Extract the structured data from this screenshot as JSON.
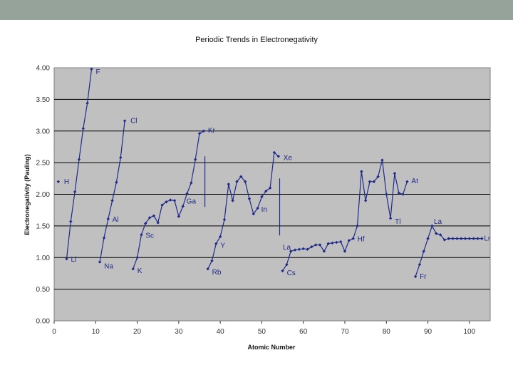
{
  "slide": {
    "header_color": "#95a39a"
  },
  "chart_data": {
    "type": "line",
    "title": "Periodic Trends in Electronegativity",
    "xlabel": "Atomic Number",
    "ylabel": "Electronegativity (Pauling)",
    "xlim": [
      0,
      105
    ],
    "ylim": [
      0,
      4
    ],
    "xticks": [
      "0",
      "10",
      "20",
      "30",
      "40",
      "50",
      "60",
      "70",
      "80",
      "90",
      "100"
    ],
    "yticks": [
      "0.00",
      "0.50",
      "1.00",
      "1.50",
      "2.00",
      "2.50",
      "3.00",
      "3.50",
      "4.00"
    ],
    "grid": "horizontal",
    "plot_background": "#c0c0c0",
    "line_color": "#1f2a8a",
    "series": [
      {
        "x": [
          1,
          3,
          4,
          5,
          6,
          7,
          8,
          9,
          11,
          12,
          13,
          14,
          15,
          16,
          17,
          19,
          20,
          21,
          22,
          23,
          24,
          25,
          26,
          27,
          28,
          29,
          30,
          31,
          32,
          33,
          34,
          35,
          36,
          37,
          38,
          39,
          40,
          41,
          42,
          43,
          44,
          45,
          46,
          47,
          48,
          49,
          50,
          51,
          52,
          53,
          54,
          55,
          56,
          57,
          58,
          59,
          60,
          61,
          62,
          63,
          64,
          65,
          66,
          67,
          68,
          69,
          70,
          71,
          72,
          73,
          74,
          75,
          76,
          77,
          78,
          79,
          80,
          81,
          82,
          83,
          84,
          85,
          87,
          88,
          89,
          90,
          91,
          92,
          93,
          94,
          95,
          96,
          97,
          98,
          99,
          100,
          101,
          102,
          103
        ],
        "y": [
          2.2,
          0.98,
          1.57,
          2.04,
          2.55,
          3.04,
          3.44,
          3.98,
          0.93,
          1.31,
          1.61,
          1.9,
          2.19,
          2.58,
          3.16,
          0.82,
          1.0,
          1.36,
          1.54,
          1.63,
          1.66,
          1.55,
          1.83,
          1.88,
          1.91,
          1.9,
          1.65,
          1.81,
          2.01,
          2.18,
          2.55,
          2.96,
          3.0,
          0.82,
          0.95,
          1.22,
          1.33,
          1.6,
          2.16,
          1.9,
          2.2,
          2.28,
          2.2,
          1.93,
          1.69,
          1.78,
          1.96,
          2.05,
          2.1,
          2.66,
          2.6,
          0.79,
          0.89,
          1.1,
          1.12,
          1.13,
          1.14,
          1.13,
          1.17,
          1.2,
          1.2,
          1.1,
          1.22,
          1.23,
          1.24,
          1.25,
          1.1,
          1.27,
          1.3,
          1.5,
          2.36,
          1.9,
          2.2,
          2.2,
          2.28,
          2.54,
          2.0,
          1.62,
          2.33,
          2.02,
          2.0,
          2.2,
          0.7,
          0.89,
          1.1,
          1.3,
          1.5,
          1.38,
          1.36,
          1.28,
          1.3,
          1.3,
          1.3,
          1.3,
          1.3,
          1.3,
          1.3,
          1.3,
          1.3
        ],
        "gaps_after_x": [
          1,
          9,
          17,
          36,
          54,
          85
        ]
      }
    ],
    "drop_lines": [
      {
        "x": 36.3,
        "from": 2.6,
        "to": 1.8
      },
      {
        "x": 54.3,
        "from": 2.25,
        "to": 1.35
      }
    ],
    "annotations": [
      {
        "text": "H",
        "x": 1
      },
      {
        "text": "Li",
        "x": 3
      },
      {
        "text": "F",
        "x": 9
      },
      {
        "text": "Na",
        "x": 11
      },
      {
        "text": "Al",
        "x": 13
      },
      {
        "text": "Cl",
        "x": 17
      },
      {
        "text": "K",
        "x": 19
      },
      {
        "text": "Sc",
        "x": 21
      },
      {
        "text": "Ga",
        "x": 31
      },
      {
        "text": "Kr",
        "x": 36
      },
      {
        "text": "Rb",
        "x": 37
      },
      {
        "text": "Y",
        "x": 39
      },
      {
        "text": "In",
        "x": 49
      },
      {
        "text": "Xe",
        "x": 54
      },
      {
        "text": "La",
        "x": 57
      },
      {
        "text": "Cs",
        "x": 55
      },
      {
        "text": "Hf",
        "x": 72
      },
      {
        "text": "Tl",
        "x": 81
      },
      {
        "text": "At",
        "x": 85
      },
      {
        "text": "Fr",
        "x": 87
      },
      {
        "text": "La",
        "x": 89
      },
      {
        "text": "Lr",
        "x": 103
      }
    ]
  }
}
